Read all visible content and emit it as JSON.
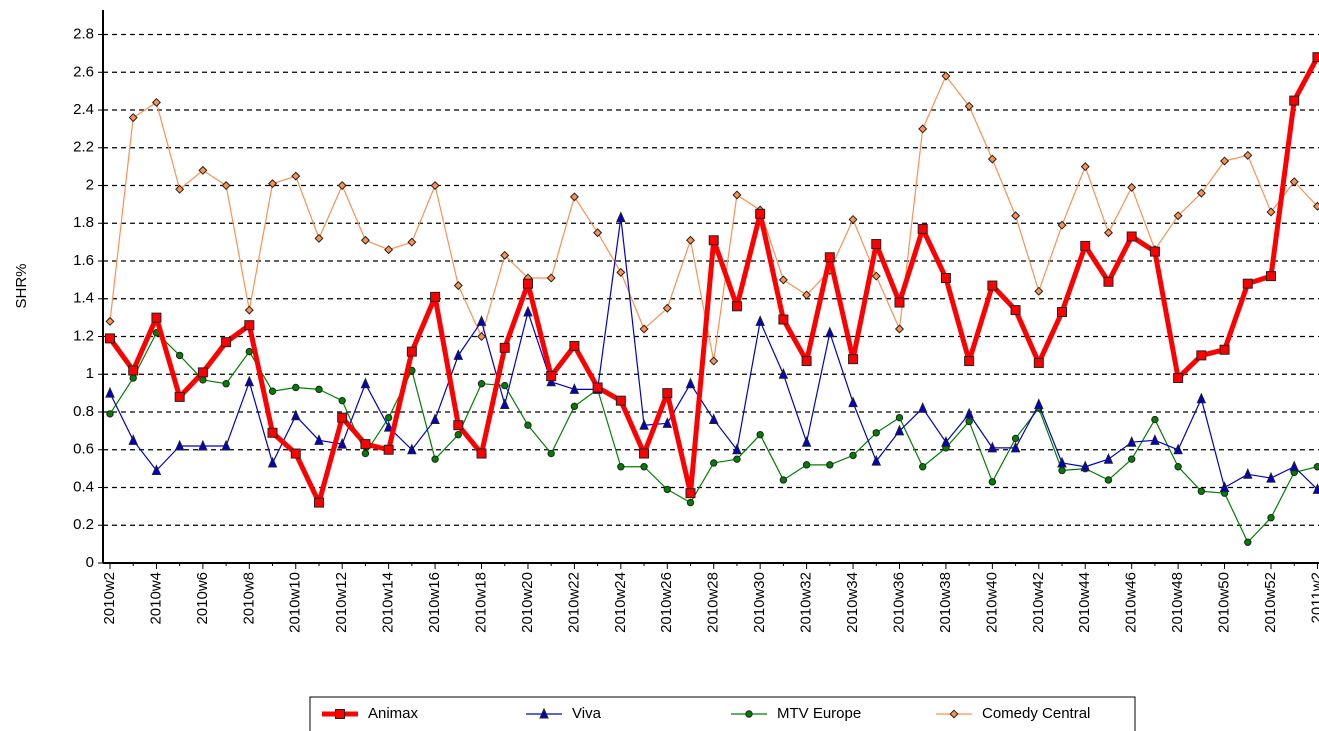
{
  "chart_data": {
    "type": "line",
    "y_label": "SHR%",
    "categories": [
      "2010w2",
      null,
      "2010w4",
      null,
      "2010w6",
      null,
      "2010w8",
      null,
      "2010w10",
      null,
      "2010w12",
      null,
      "2010w14",
      null,
      "2010w16",
      null,
      "2010w18",
      null,
      "2010w20",
      null,
      "2010w22",
      null,
      "2010w24",
      null,
      "2010w26",
      null,
      "2010w28",
      null,
      "2010w30",
      null,
      "2010w32",
      null,
      "2010w34",
      null,
      "2010w36",
      null,
      "2010w38",
      null,
      "2010w40",
      null,
      "2010w42",
      null,
      "2010w44",
      null,
      "2010w46",
      null,
      "2010w48",
      null,
      "2010w50",
      null,
      "2010w52",
      null,
      "2011w2"
    ],
    "ylim": [
      0,
      2.93
    ],
    "yticks": [
      0,
      0.2,
      0.4,
      0.6,
      0.8,
      1,
      1.2,
      1.4,
      1.6,
      1.8,
      2,
      2.2,
      2.4,
      2.6,
      2.8
    ],
    "grid": true,
    "legend": "bottom",
    "series": [
      {
        "name": "Animax",
        "color": "#ff0000",
        "marker": "square",
        "values": [
          1.19,
          1.02,
          1.3,
          0.88,
          1.01,
          1.17,
          1.26,
          0.69,
          0.58,
          0.32,
          0.77,
          0.63,
          0.6,
          1.12,
          1.41,
          0.73,
          0.58,
          1.14,
          1.48,
          0.99,
          1.15,
          0.93,
          0.86,
          0.58,
          0.9,
          0.37,
          1.71,
          1.36,
          1.85,
          1.29,
          1.07,
          1.62,
          1.08,
          1.69,
          1.38,
          1.77,
          1.51,
          1.07,
          1.47,
          1.34,
          1.06,
          1.33,
          1.68,
          1.49,
          1.73,
          1.65,
          0.98,
          1.1,
          1.13,
          1.48,
          1.52,
          2.45,
          2.68
        ]
      },
      {
        "name": "Viva",
        "color": "#0000cc",
        "marker": "triangle",
        "values": [
          0.9,
          0.65,
          0.49,
          0.62,
          0.62,
          0.62,
          0.96,
          0.53,
          0.78,
          0.65,
          0.63,
          0.95,
          0.72,
          0.6,
          0.76,
          1.1,
          1.28,
          0.84,
          1.33,
          0.96,
          0.92,
          0.92,
          1.83,
          0.73,
          0.74,
          0.95,
          0.76,
          0.6,
          1.28,
          1.0,
          0.64,
          1.22,
          0.85,
          0.54,
          0.7,
          0.82,
          0.64,
          0.79,
          0.61,
          0.61,
          0.84,
          0.53,
          0.51,
          0.55,
          0.64,
          0.65,
          0.6,
          0.87,
          0.4,
          0.47,
          0.45,
          0.51,
          0.39
        ]
      },
      {
        "name": "MTV Europe",
        "color": "#008000",
        "marker": "circle",
        "values": [
          0.79,
          0.98,
          1.22,
          1.1,
          0.97,
          0.95,
          1.12,
          0.91,
          0.93,
          0.92,
          0.86,
          0.58,
          0.77,
          1.02,
          0.55,
          0.68,
          0.95,
          0.94,
          0.73,
          0.58,
          0.83,
          0.92,
          0.51,
          0.51,
          0.39,
          0.32,
          0.53,
          0.55,
          0.68,
          0.44,
          0.52,
          0.52,
          0.57,
          0.69,
          0.77,
          0.51,
          0.61,
          0.75,
          0.43,
          0.66,
          0.82,
          0.49,
          0.5,
          0.44,
          0.55,
          0.76,
          0.51,
          0.38,
          0.37,
          0.11,
          0.24,
          0.48,
          0.51
        ]
      },
      {
        "name": "Comedy Central",
        "color": "#ff9050",
        "marker": "diamond",
        "values": [
          1.28,
          2.36,
          2.44,
          1.98,
          2.08,
          2.0,
          1.34,
          2.01,
          2.05,
          1.72,
          2.0,
          1.71,
          1.66,
          1.7,
          2.0,
          1.47,
          1.2,
          1.63,
          1.51,
          1.51,
          1.94,
          1.75,
          1.54,
          1.24,
          1.35,
          1.71,
          1.07,
          1.95,
          1.87,
          1.5,
          1.42,
          1.55,
          1.82,
          1.52,
          1.24,
          2.3,
          2.58,
          2.42,
          2.14,
          1.84,
          1.44,
          1.79,
          2.1,
          1.75,
          1.99,
          1.66,
          1.84,
          1.96,
          2.13,
          2.16,
          1.86,
          2.02,
          1.89
        ]
      }
    ]
  }
}
